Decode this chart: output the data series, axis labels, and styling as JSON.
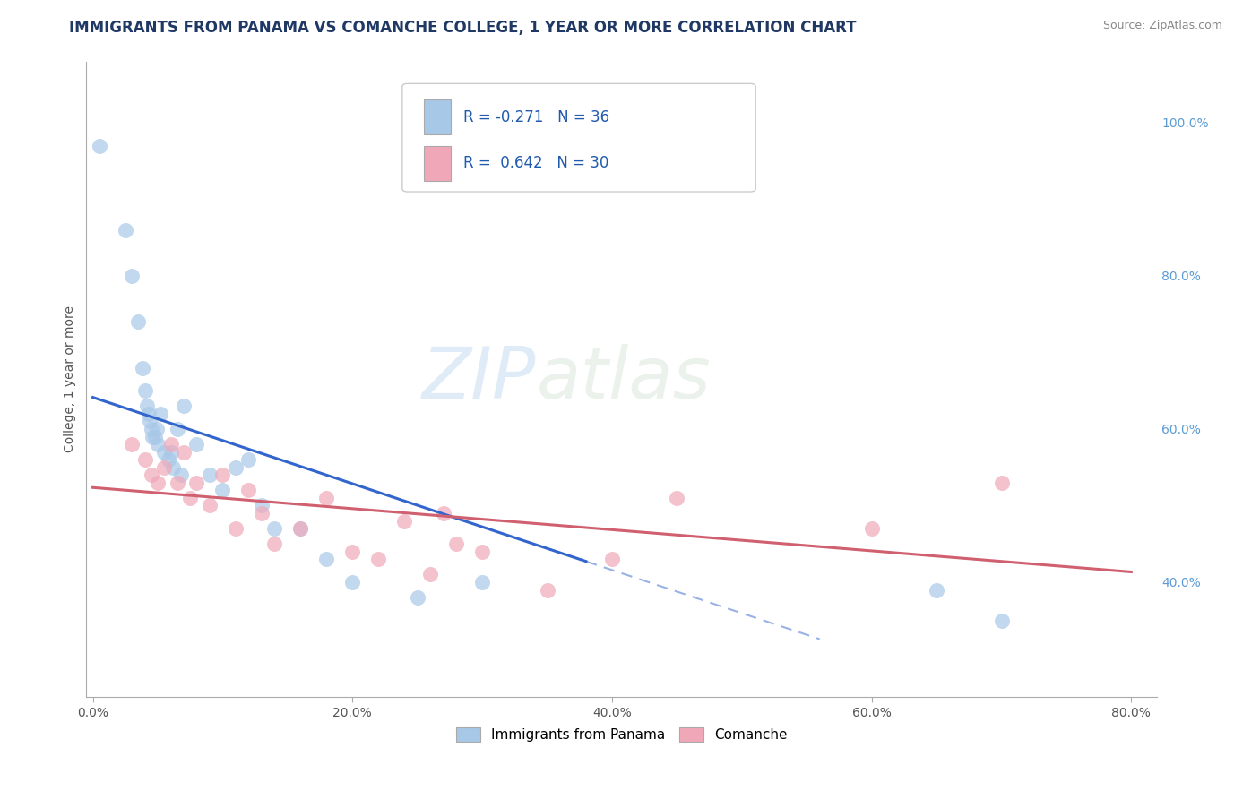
{
  "title": "IMMIGRANTS FROM PANAMA VS COMANCHE COLLEGE, 1 YEAR OR MORE CORRELATION CHART",
  "source_text": "Source: ZipAtlas.com",
  "ylabel": "College, 1 year or more",
  "xlim": [
    -0.005,
    0.82
  ],
  "ylim": [
    0.25,
    1.08
  ],
  "xticks": [
    0.0,
    0.2,
    0.4,
    0.6,
    0.8
  ],
  "xticklabels": [
    "0.0%",
    "20.0%",
    "40.0%",
    "60.0%",
    "80.0%"
  ],
  "yticks_right": [
    0.4,
    0.6,
    0.8,
    1.0
  ],
  "yticklabels_right": [
    "40.0%",
    "60.0%",
    "80.0%",
    "100.0%"
  ],
  "watermark_zip": "ZIP",
  "watermark_atlas": "atlas",
  "blue_color": "#A8C8E8",
  "pink_color": "#F0A8B8",
  "blue_line_color": "#3366CC",
  "pink_line_color": "#D06070",
  "grid_color": "#CCCCCC",
  "bg_color": "#FFFFFF",
  "title_color": "#1F3864",
  "blue_scatter_x": [
    0.005,
    0.025,
    0.03,
    0.035,
    0.038,
    0.04,
    0.042,
    0.043,
    0.044,
    0.045,
    0.046,
    0.048,
    0.049,
    0.05,
    0.052,
    0.055,
    0.058,
    0.06,
    0.062,
    0.065,
    0.068,
    0.07,
    0.08,
    0.09,
    0.1,
    0.11,
    0.12,
    0.13,
    0.14,
    0.16,
    0.18,
    0.2,
    0.25,
    0.3,
    0.65,
    0.7
  ],
  "blue_scatter_y": [
    0.97,
    0.86,
    0.8,
    0.74,
    0.68,
    0.65,
    0.63,
    0.62,
    0.61,
    0.6,
    0.59,
    0.59,
    0.6,
    0.58,
    0.62,
    0.57,
    0.56,
    0.57,
    0.55,
    0.6,
    0.54,
    0.63,
    0.58,
    0.54,
    0.52,
    0.55,
    0.56,
    0.5,
    0.47,
    0.47,
    0.43,
    0.4,
    0.38,
    0.4,
    0.39,
    0.35
  ],
  "pink_scatter_x": [
    0.03,
    0.04,
    0.045,
    0.05,
    0.055,
    0.06,
    0.065,
    0.07,
    0.075,
    0.08,
    0.09,
    0.1,
    0.11,
    0.12,
    0.13,
    0.14,
    0.16,
    0.18,
    0.2,
    0.22,
    0.24,
    0.26,
    0.27,
    0.28,
    0.3,
    0.35,
    0.4,
    0.45,
    0.6,
    0.7
  ],
  "pink_scatter_y": [
    0.58,
    0.56,
    0.54,
    0.53,
    0.55,
    0.58,
    0.53,
    0.57,
    0.51,
    0.53,
    0.5,
    0.54,
    0.47,
    0.52,
    0.49,
    0.45,
    0.47,
    0.51,
    0.44,
    0.43,
    0.48,
    0.41,
    0.49,
    0.45,
    0.44,
    0.39,
    0.43,
    0.51,
    0.47,
    0.53
  ],
  "legend_blue_label_r": "R = -0.271",
  "legend_blue_label_n": "N = 36",
  "legend_pink_label_r": "R =  0.642",
  "legend_pink_label_n": "N = 30",
  "legend_blue_color": "#A8C8E8",
  "legend_pink_color": "#F0A8B8",
  "bottom_legend_items": [
    "Immigrants from Panama",
    "Comanche"
  ],
  "title_fontsize": 12,
  "axis_label_fontsize": 10,
  "tick_fontsize": 10,
  "source_fontsize": 9,
  "blue_line_x_start": 0.0,
  "blue_line_x_end": 0.38,
  "blue_line_dashed_x_start": 0.38,
  "blue_line_dashed_x_end": 0.55,
  "pink_line_x_start": 0.0,
  "pink_line_x_end": 0.8
}
